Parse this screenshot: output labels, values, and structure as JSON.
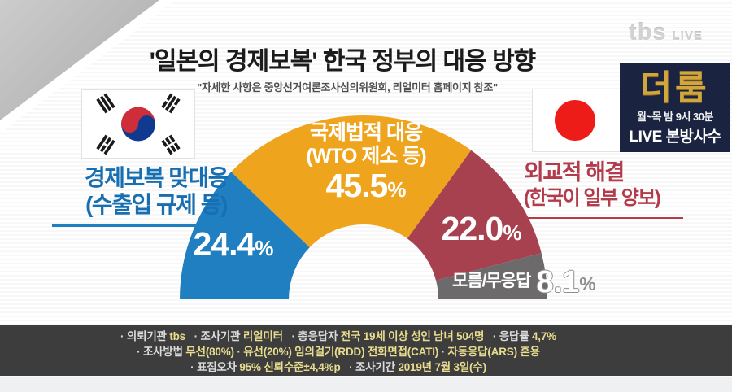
{
  "watermark": {
    "brand": "tbs",
    "live": "LIVE"
  },
  "header": {
    "title": "'일본의 경제보복' 한국 정부의 대응 방향",
    "subtitle": "\"자세한 사항은 중앙선거여론조사심의위원회, 리얼미터 홈페이지 참조\""
  },
  "promo": {
    "show_name": "더룸",
    "schedule": "월~목 밤 9시 30분",
    "tagline": "LIVE 본방사수",
    "bg_color": "#1a2440",
    "accent_color": "#d2a53d"
  },
  "icons": {
    "left_flag": "korea-flag",
    "right_flag": "japan-flag"
  },
  "chart_data": {
    "type": "pie",
    "subtype": "semicircle-donut",
    "title": "'일본의 경제보복' 한국 정부의 대응 방향",
    "unit": "%",
    "total": 100.0,
    "start_angle_deg": 180,
    "end_angle_deg": 0,
    "legend_position": "sides",
    "slices": [
      {
        "label": "경제보복 맞대응",
        "sublabel": "(수출입 규제 등)",
        "value": 24.4,
        "value_label": "24.4%",
        "color": "#1f7fc0",
        "label_color": "#176fb2"
      },
      {
        "label": "국제법적 대응",
        "sublabel": "(WTO 제소 등)",
        "value": 45.5,
        "value_label": "45.5%",
        "color": "#efa41e",
        "label_color": "#ffffff"
      },
      {
        "label": "외교적 해결",
        "sublabel": "(한국이 일부 양보)",
        "value": 22.0,
        "value_label": "22.0%",
        "color": "#a8414f",
        "label_color": "#b23c4c"
      },
      {
        "label": "모름/무응답",
        "sublabel": "",
        "value": 8.1,
        "value_label": "8.1%",
        "color": "#6c6a6b",
        "label_color": "#8f8d8e"
      }
    ]
  },
  "footer": {
    "bg_color": "#3e3d3e",
    "lines": [
      {
        "segments": [
          {
            "text": "· 의뢰기관 ",
            "tone": "plain"
          },
          {
            "text": "tbs",
            "tone": "accent"
          },
          {
            "text": "   · 조사기관 ",
            "tone": "plain"
          },
          {
            "text": "리얼미터",
            "tone": "accent"
          },
          {
            "text": "   · 총응답자 ",
            "tone": "plain"
          },
          {
            "text": "전국 19세 이상 성인 남녀 504명",
            "tone": "accent"
          },
          {
            "text": "   · 응답률 ",
            "tone": "plain"
          },
          {
            "text": "4,7%",
            "tone": "accent"
          }
        ]
      },
      {
        "segments": [
          {
            "text": "· 조사방법 ",
            "tone": "plain"
          },
          {
            "text": "무선(80%)",
            "tone": "accent"
          },
          {
            "text": " · ",
            "tone": "plain"
          },
          {
            "text": "유선(20%) 임의걸기(RDD) 전화면접(CATI)",
            "tone": "accent"
          },
          {
            "text": " · ",
            "tone": "plain"
          },
          {
            "text": "자동응답(ARS) 혼용",
            "tone": "accent"
          }
        ]
      },
      {
        "segments": [
          {
            "text": "· 표집오차 ",
            "tone": "plain"
          },
          {
            "text": "95% 신뢰수준±4,4%p",
            "tone": "accent"
          },
          {
            "text": "   · 조사기간 ",
            "tone": "plain"
          },
          {
            "text": "2019년 7월 3일(수)",
            "tone": "accent"
          }
        ]
      }
    ]
  }
}
